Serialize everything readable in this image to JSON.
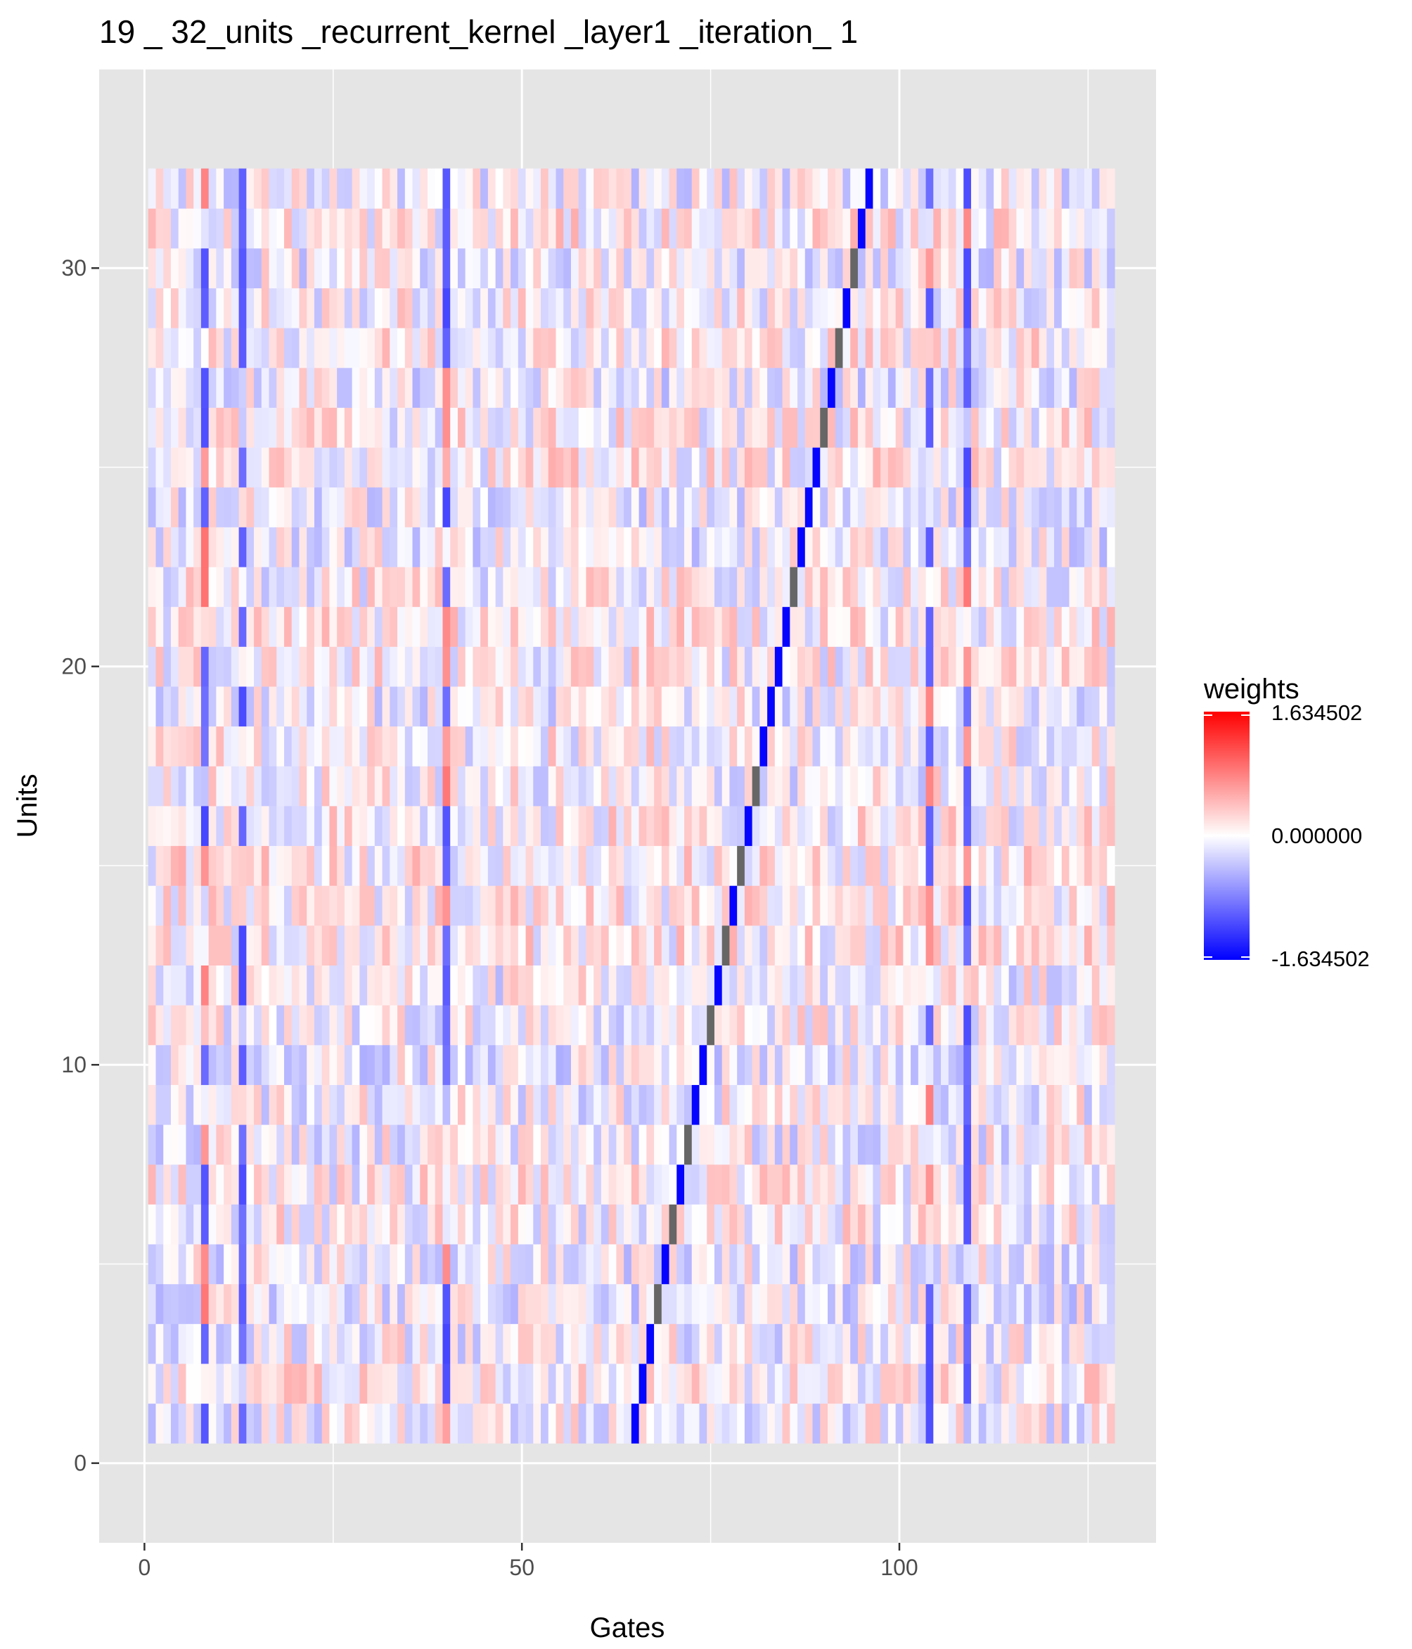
{
  "chart_data": {
    "type": "heatmap",
    "title": "19 _ 32_units _recurrent_kernel _layer1 _iteration_ 1",
    "xlabel": "Gates",
    "ylabel": "Units",
    "xlim": [
      -6,
      134
    ],
    "ylim": [
      -2,
      35
    ],
    "x_ticks": [
      0,
      50,
      100
    ],
    "y_ticks": [
      0,
      10,
      20,
      30
    ],
    "n_gates": 128,
    "n_units": 32,
    "grid": true,
    "panel_background": "#e5e5e5",
    "legend": {
      "title": "weights",
      "position": "right",
      "labels": [
        "1.634502",
        "0.000000",
        "-1.634502"
      ],
      "max": 1.634502,
      "mid": 0.0,
      "min": -1.634502,
      "high_color": "#ff0000",
      "mid_color": "#ffffff",
      "low_color": "#0000ff"
    },
    "na_color": "#666666",
    "values_note_free": true,
    "diagonal_gate_by_unit": [
      65,
      66,
      67,
      68,
      69,
      70,
      71,
      72,
      73,
      74,
      75,
      76,
      77,
      78,
      79,
      80,
      81,
      82,
      83,
      84,
      85,
      86,
      87,
      88,
      89,
      90,
      91,
      92,
      93,
      94,
      95,
      96
    ],
    "diagonal_values": [
      -1.6,
      -1.6,
      -1.6,
      "NA",
      -1.6,
      "NA",
      -1.6,
      "NA",
      -1.6,
      -1.6,
      "NA",
      -1.6,
      "NA",
      -1.6,
      "NA",
      -1.6,
      "NA",
      -1.6,
      -1.6,
      -1.6,
      -1.6,
      "NA",
      -1.6,
      -1.6,
      -1.6,
      "NA",
      -1.6,
      "NA",
      -1.6,
      "NA",
      -1.6,
      -1.6
    ],
    "strong_positive_columns": [
      8,
      40,
      104,
      109
    ],
    "strong_negative_columns": [
      8,
      13,
      40,
      104,
      109
    ],
    "random_seed": 19
  }
}
